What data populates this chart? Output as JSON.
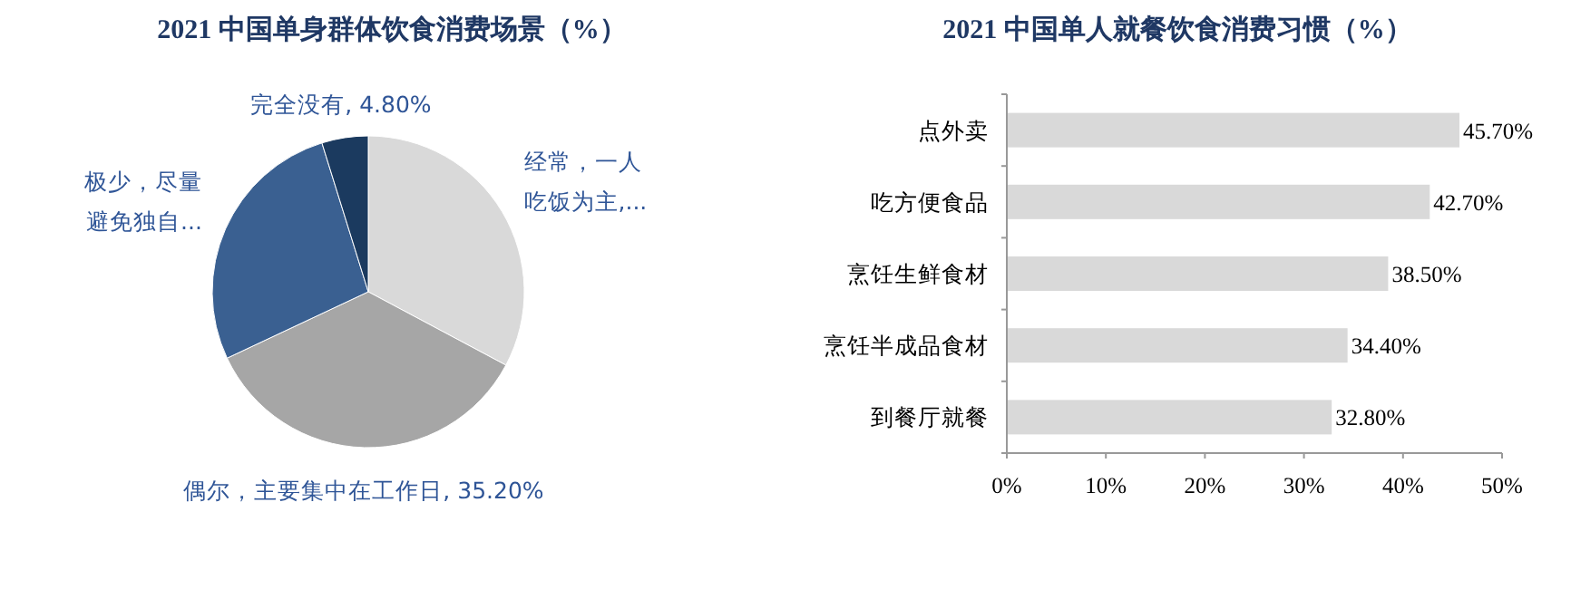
{
  "chart_data": [
    {
      "type": "pie",
      "title": "2021 中国单身群体饮食消费场景（%）",
      "categories": [
        "经常，一人吃饭为主,...",
        "偶尔，主要集中在工作日",
        "极少，尽量避免独自...",
        "完全没有"
      ],
      "values": [
        32.8,
        35.2,
        27.2,
        4.8
      ],
      "value_labels": [
        null,
        "35.20%",
        null,
        "4.80%"
      ],
      "colors": [
        "#d9d9d9",
        "#a6a6a6",
        "#3a6091",
        "#1b3a5f"
      ]
    },
    {
      "type": "bar",
      "orientation": "horizontal",
      "title": "2021 中国单人就餐饮食消费习惯（%）",
      "categories": [
        "点外卖",
        "吃方便食品",
        "烹饪生鲜食材",
        "烹饪半成品食材",
        "到餐厅就餐"
      ],
      "values": [
        45.7,
        42.7,
        38.5,
        34.4,
        32.8
      ],
      "value_labels": [
        "45.70%",
        "42.70%",
        "38.50%",
        "34.40%",
        "32.80%"
      ],
      "color": "#d9d9d9",
      "xlim": [
        0,
        50
      ],
      "xticks": [
        {
          "value": 0,
          "label": "0%"
        },
        {
          "value": 10,
          "label": "10%"
        },
        {
          "value": 20,
          "label": "20%"
        },
        {
          "value": 30,
          "label": "30%"
        },
        {
          "value": 40,
          "label": "40%"
        },
        {
          "value": 50,
          "label": "50%"
        }
      ],
      "grid": false
    }
  ]
}
